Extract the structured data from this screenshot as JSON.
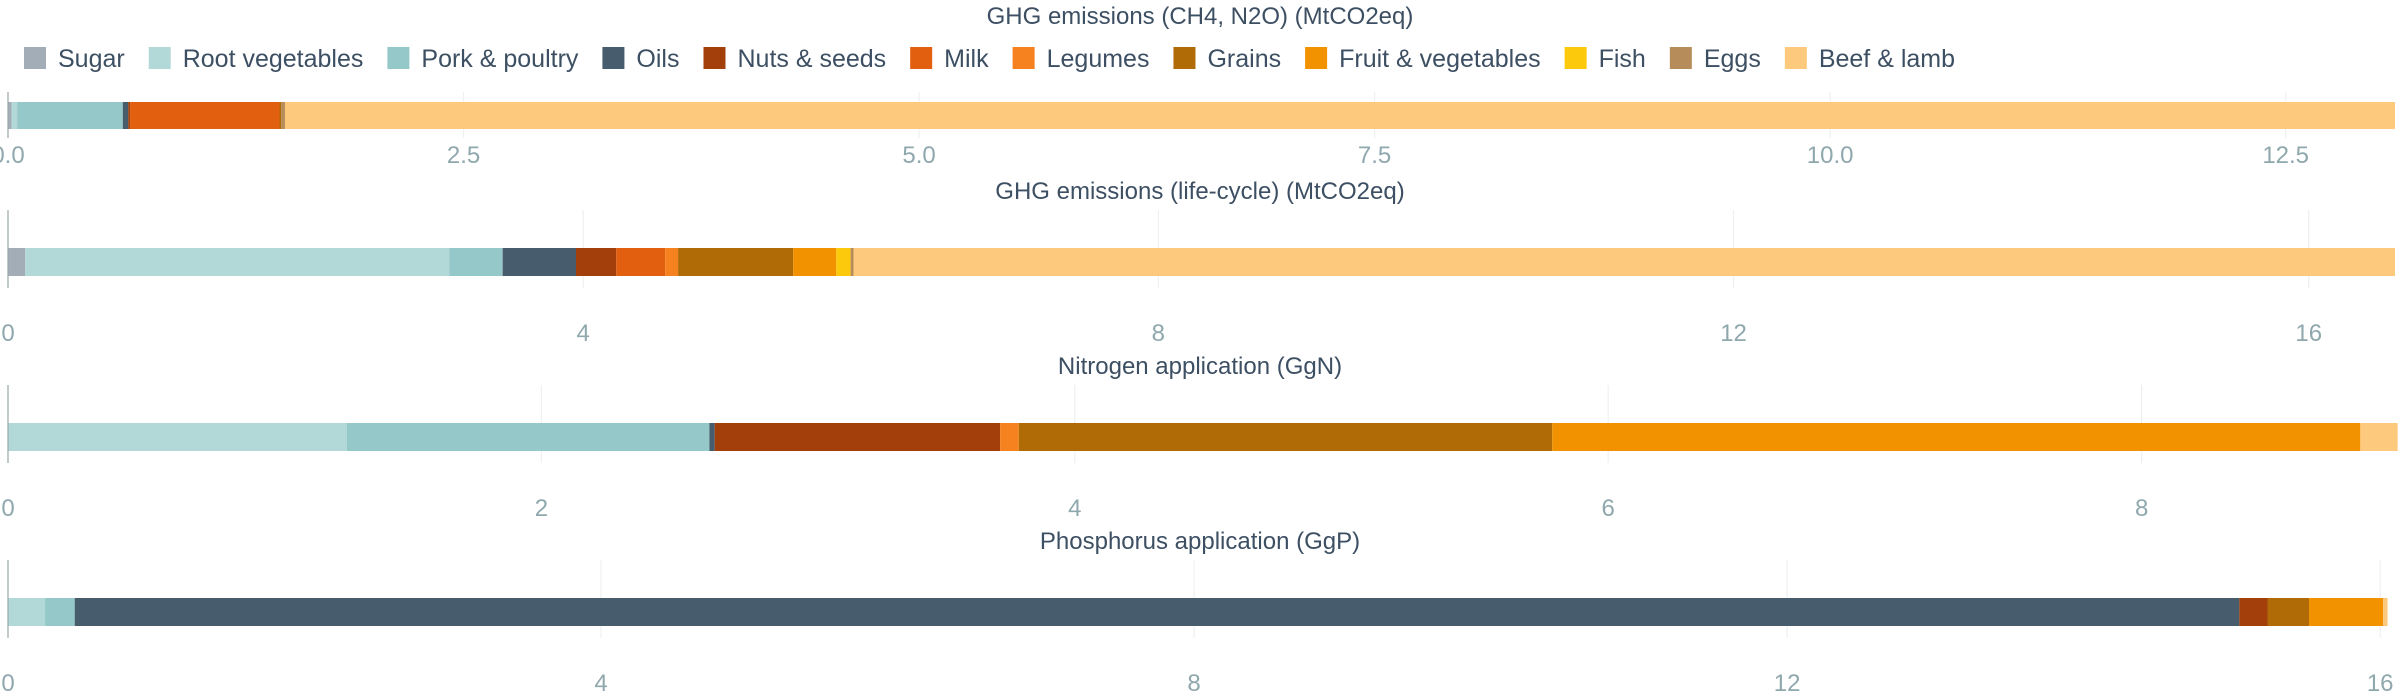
{
  "legend": {
    "items": [
      {
        "name": "Sugar",
        "color": "#a2adb8"
      },
      {
        "name": "Root vegetables",
        "color": "#b3d8d8"
      },
      {
        "name": "Pork & poultry",
        "color": "#95c8c8"
      },
      {
        "name": "Oils",
        "color": "#475c6d"
      },
      {
        "name": "Nuts & seeds",
        "color": "#a23f0b"
      },
      {
        "name": "Milk",
        "color": "#e25f0f"
      },
      {
        "name": "Legumes",
        "color": "#f5821f"
      },
      {
        "name": "Grains",
        "color": "#b06b06"
      },
      {
        "name": "Fruit & vegetables",
        "color": "#f39200"
      },
      {
        "name": "Fish",
        "color": "#fcc90c"
      },
      {
        "name": "Eggs",
        "color": "#b68c5a"
      },
      {
        "name": "Beef & lamb",
        "color": "#fdc97d"
      }
    ]
  },
  "chart_data": [
    {
      "type": "bar",
      "orientation": "horizontal",
      "stacked": true,
      "title": "GHG emissions (CH4, N2O) (MtCO2eq)",
      "xlim": [
        0,
        13.1
      ],
      "ticks": [
        0,
        2.5,
        5,
        7.5,
        10,
        12.5
      ],
      "tick_labels": [
        "0.0",
        "2.5",
        "5.0",
        "7.5",
        "10.0",
        "12.5"
      ],
      "grid": true,
      "series": [
        {
          "name": "Sugar",
          "value": 0.02
        },
        {
          "name": "Root vegetables",
          "value": 0.03
        },
        {
          "name": "Pork & poultry",
          "value": 0.58
        },
        {
          "name": "Oils",
          "value": 0.03
        },
        {
          "name": "Nuts & seeds",
          "value": 0.01
        },
        {
          "name": "Milk",
          "value": 0.82
        },
        {
          "name": "Legumes",
          "value": 0.0
        },
        {
          "name": "Grains",
          "value": 0.01
        },
        {
          "name": "Fruit & vegetables",
          "value": 0.0
        },
        {
          "name": "Fish",
          "value": 0.0
        },
        {
          "name": "Eggs",
          "value": 0.02
        },
        {
          "name": "Beef & lamb",
          "value": 11.58
        }
      ]
    },
    {
      "type": "bar",
      "orientation": "horizontal",
      "stacked": true,
      "title": "GHG emissions (life-cycle) (MtCO2eq)",
      "xlim": [
        0,
        16.6
      ],
      "ticks": [
        0,
        4,
        8,
        12,
        16
      ],
      "tick_labels": [
        "0",
        "4",
        "8",
        "12",
        "16"
      ],
      "grid": true,
      "series": [
        {
          "name": "Sugar",
          "value": 0.12
        },
        {
          "name": "Root vegetables",
          "value": 2.95
        },
        {
          "name": "Pork & poultry",
          "value": 0.37
        },
        {
          "name": "Oils",
          "value": 0.51
        },
        {
          "name": "Nuts & seeds",
          "value": 0.28
        },
        {
          "name": "Milk",
          "value": 0.34
        },
        {
          "name": "Legumes",
          "value": 0.09
        },
        {
          "name": "Grains",
          "value": 0.8
        },
        {
          "name": "Fruit & vegetables",
          "value": 0.3
        },
        {
          "name": "Fish",
          "value": 0.1
        },
        {
          "name": "Eggs",
          "value": 0.02
        },
        {
          "name": "Beef & lamb",
          "value": 10.72
        }
      ]
    },
    {
      "type": "bar",
      "orientation": "horizontal",
      "stacked": true,
      "title": "Nitrogen application (GgN)",
      "xlim": [
        0,
        8.95
      ],
      "ticks": [
        0,
        2,
        4,
        6,
        8
      ],
      "tick_labels": [
        "0",
        "2",
        "4",
        "6",
        "8"
      ],
      "grid": true,
      "series": [
        {
          "name": "Sugar",
          "value": 0.0
        },
        {
          "name": "Root vegetables",
          "value": 1.27
        },
        {
          "name": "Pork & poultry",
          "value": 1.36
        },
        {
          "name": "Oils",
          "value": 0.02
        },
        {
          "name": "Nuts & seeds",
          "value": 1.07
        },
        {
          "name": "Milk",
          "value": 0.0
        },
        {
          "name": "Legumes",
          "value": 0.07
        },
        {
          "name": "Grains",
          "value": 2.0
        },
        {
          "name": "Fruit & vegetables",
          "value": 3.03
        },
        {
          "name": "Fish",
          "value": 0.0
        },
        {
          "name": "Eggs",
          "value": 0.0
        },
        {
          "name": "Beef & lamb",
          "value": 0.14
        }
      ]
    },
    {
      "type": "bar",
      "orientation": "horizontal",
      "stacked": true,
      "title": "Phosphorus application (GgP)",
      "xlim": [
        0,
        16.1
      ],
      "ticks": [
        0,
        4,
        8,
        12,
        16
      ],
      "tick_labels": [
        "0",
        "4",
        "8",
        "12",
        "16"
      ],
      "grid": true,
      "series": [
        {
          "name": "Sugar",
          "value": 0.0
        },
        {
          "name": "Root vegetables",
          "value": 0.25
        },
        {
          "name": "Pork & poultry",
          "value": 0.2
        },
        {
          "name": "Oils",
          "value": 14.6
        },
        {
          "name": "Nuts & seeds",
          "value": 0.19
        },
        {
          "name": "Milk",
          "value": 0.0
        },
        {
          "name": "Legumes",
          "value": 0.0
        },
        {
          "name": "Grains",
          "value": 0.28
        },
        {
          "name": "Fruit & vegetables",
          "value": 0.5
        },
        {
          "name": "Fish",
          "value": 0.0
        },
        {
          "name": "Eggs",
          "value": 0.0
        },
        {
          "name": "Beef & lamb",
          "value": 0.03
        }
      ]
    }
  ]
}
